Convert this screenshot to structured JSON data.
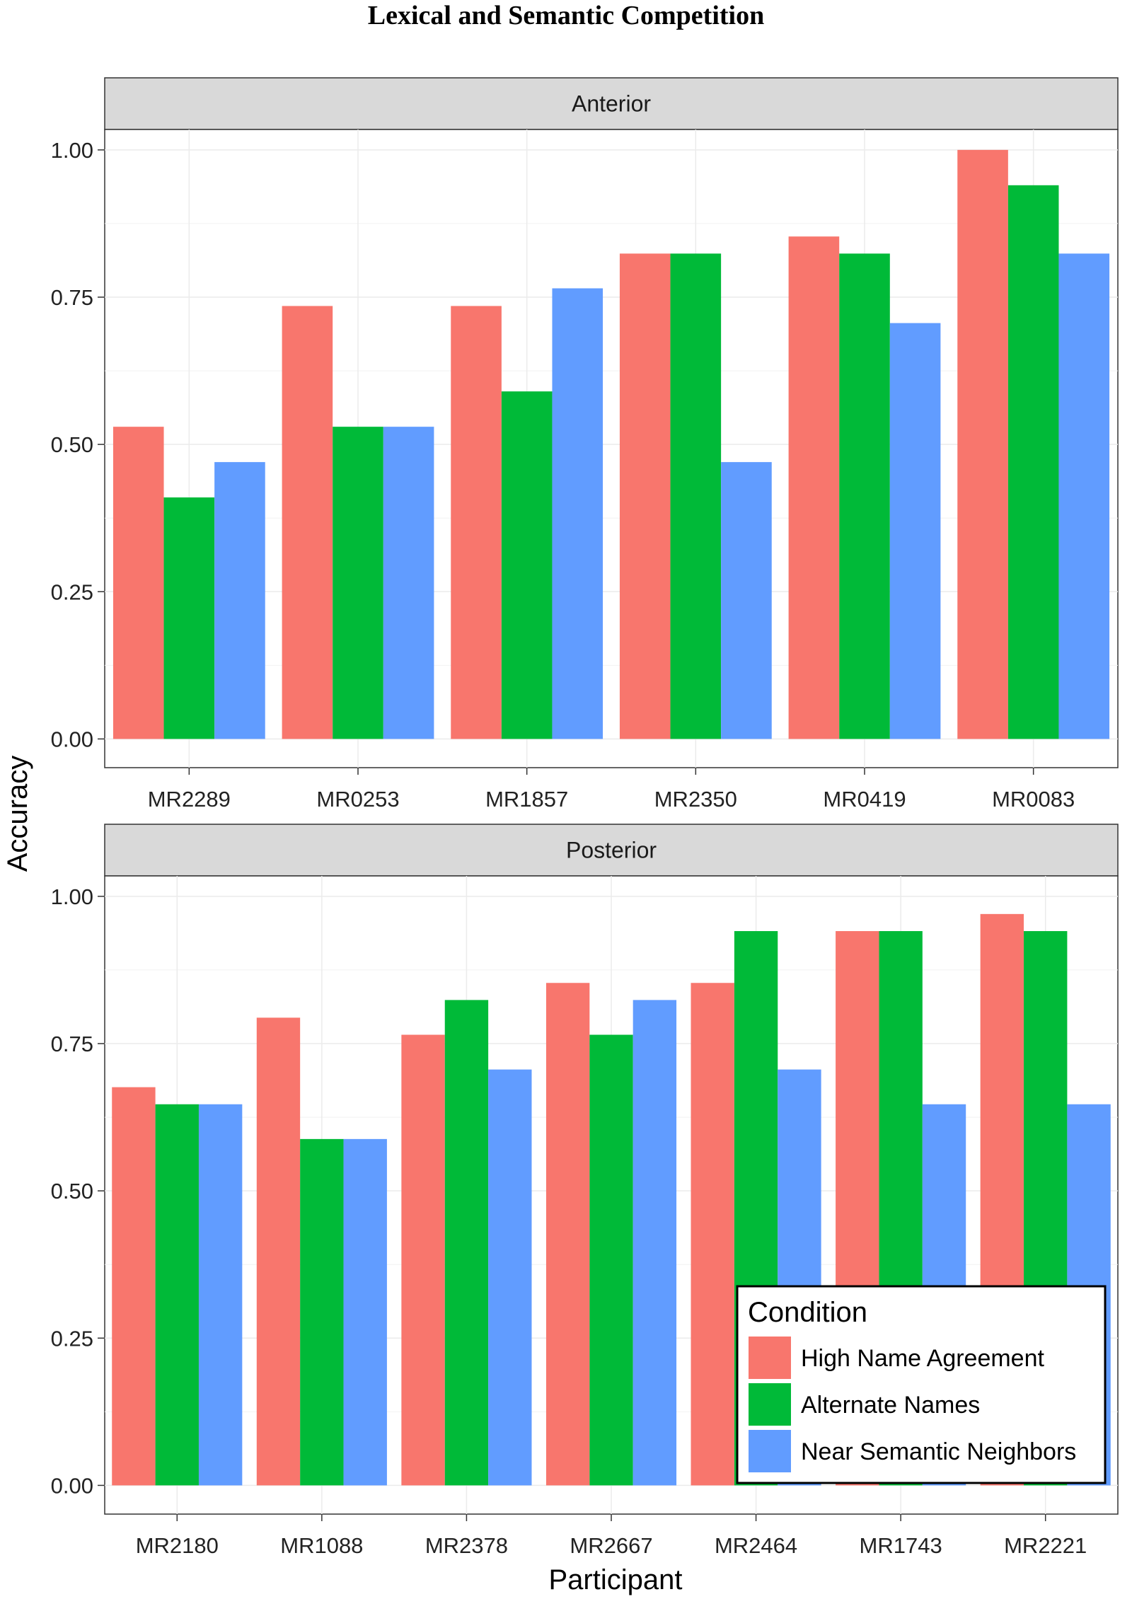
{
  "chart_data": {
    "type": "bar",
    "title": "Lexical and Semantic Competition",
    "xlabel": "Participant",
    "ylabel": "Accuracy",
    "ylim": [
      0,
      1.05
    ],
    "yticks": [
      "0.00",
      "0.25",
      "0.50",
      "0.75",
      "1.00"
    ],
    "legend": {
      "title": "Condition",
      "placement": "bottom-right",
      "entries": [
        "High Name Agreement",
        "Alternate Names",
        "Near Semantic Neighbors"
      ]
    },
    "colors": [
      "#F8766D",
      "#00BA38",
      "#619CFF"
    ],
    "panels": [
      {
        "name": "Anterior",
        "categories": [
          "MR2289",
          "MR0253",
          "MR1857",
          "MR2350",
          "MR0419",
          "MR0083"
        ],
        "series": [
          {
            "name": "High Name Agreement",
            "values": [
              0.53,
              0.735,
              0.735,
              0.824,
              0.853,
              1.0
            ]
          },
          {
            "name": "Alternate Names",
            "values": [
              0.41,
              0.53,
              0.59,
              0.824,
              0.824,
              0.94
            ]
          },
          {
            "name": "Near Semantic Neighbors",
            "values": [
              0.47,
              0.53,
              0.765,
              0.47,
              0.706,
              0.824
            ]
          }
        ]
      },
      {
        "name": "Posterior",
        "categories": [
          "MR2180",
          "MR1088",
          "MR2378",
          "MR2667",
          "MR2464",
          "MR1743",
          "MR2221"
        ],
        "series": [
          {
            "name": "High Name Agreement",
            "values": [
              0.676,
              0.794,
              0.765,
              0.853,
              0.853,
              0.941,
              0.97
            ]
          },
          {
            "name": "Alternate Names",
            "values": [
              0.647,
              0.588,
              0.824,
              0.765,
              0.941,
              0.941,
              0.941
            ]
          },
          {
            "name": "Near Semantic Neighbors",
            "values": [
              0.647,
              0.588,
              0.706,
              0.824,
              0.706,
              0.647,
              0.647
            ]
          }
        ]
      }
    ]
  }
}
